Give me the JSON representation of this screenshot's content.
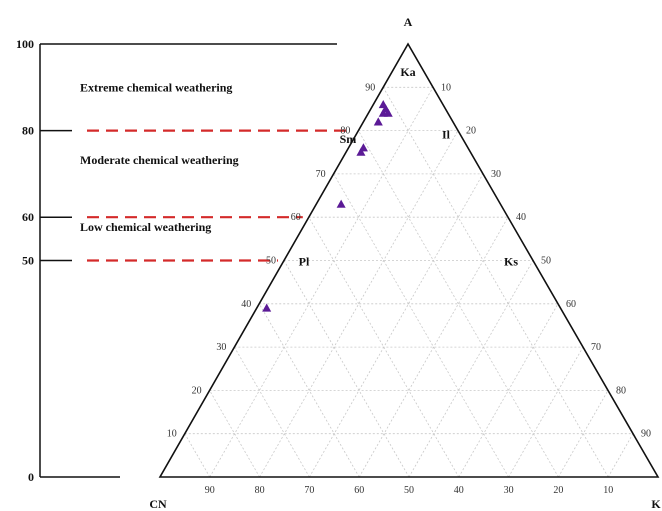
{
  "chart_data": {
    "type": "scatter",
    "subtype": "ternary",
    "vertices": {
      "top": "A",
      "left": "CN",
      "right": "K"
    },
    "ticks": {
      "a_axis": [
        "10",
        "20",
        "30",
        "40",
        "50",
        "60",
        "70",
        "80",
        "90"
      ],
      "k_axis": [
        "10",
        "20",
        "30",
        "40",
        "50",
        "60",
        "70",
        "80",
        "90"
      ],
      "cn_axis": [
        "90",
        "80",
        "70",
        "60",
        "50",
        "40",
        "30",
        "20",
        "10"
      ]
    },
    "grid": true,
    "minerals": [
      {
        "label": "Ka",
        "A": 100,
        "CN": 0,
        "K": 0
      },
      {
        "label": "Sm",
        "A": 79,
        "CN": 21,
        "K": 0
      },
      {
        "label": "Il",
        "A": 80,
        "CN": 0,
        "K": 20
      },
      {
        "label": "Pl",
        "A": 50,
        "CN": 50,
        "K": 0
      },
      {
        "label": "Ks",
        "A": 50,
        "CN": 0,
        "K": 50
      }
    ],
    "points": [
      {
        "A": 85,
        "CN": 12,
        "K": 3
      },
      {
        "A": 86,
        "CN": 12,
        "K": 2
      },
      {
        "A": 84,
        "CN": 13,
        "K": 3
      },
      {
        "A": 84,
        "CN": 12,
        "K": 4
      },
      {
        "A": 82,
        "CN": 15,
        "K": 3
      },
      {
        "A": 76,
        "CN": 21,
        "K": 3
      },
      {
        "A": 75,
        "CN": 22,
        "K": 3
      },
      {
        "A": 63,
        "CN": 32,
        "K": 5
      },
      {
        "A": 39,
        "CN": 59,
        "K": 2
      }
    ],
    "marker_color": "#5b1a96",
    "grid_color": "#c8c8c8",
    "cia_scale": {
      "ticks": [
        "0",
        "50",
        "60",
        "80",
        "100"
      ],
      "tick_values": [
        0,
        50,
        60,
        80,
        100
      ],
      "boundaries": [
        50,
        60,
        80
      ],
      "boundary_color": "#d42a2a",
      "zones": [
        {
          "label": "Extreme chemical weathering",
          "from": 80,
          "to": 100
        },
        {
          "label": "Moderate chemical weathering",
          "from": 60,
          "to": 80
        },
        {
          "label": "Low chemical weathering",
          "from": 50,
          "to": 60
        }
      ]
    }
  }
}
